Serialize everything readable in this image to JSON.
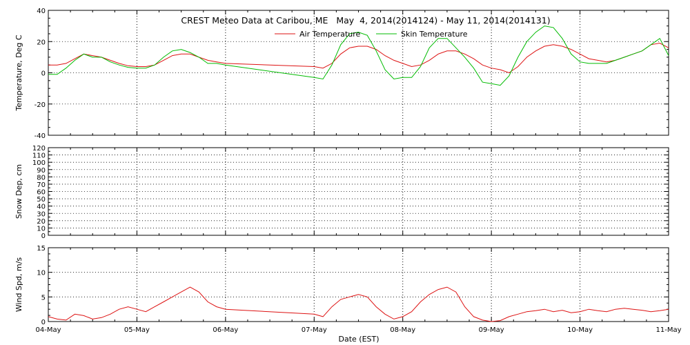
{
  "chart_data": {
    "type": "line",
    "title": "CREST Meteo Data at Caribou, ME   May  4, 2014(2014124) - May 11, 2014(2014131)",
    "xlabel": "Date (EST)",
    "x_tick_labels": [
      "04-May",
      "05-May",
      "06-May",
      "07-May",
      "08-May",
      "09-May",
      "10-May",
      "11-May"
    ],
    "xlim": [
      "2014-05-04",
      "2014-05-11"
    ],
    "grid": true,
    "colors": {
      "air": "#dd1111",
      "skin": "#00bb00",
      "wind": "#dd1111"
    },
    "panels": [
      {
        "id": "temperature",
        "ylabel": "Temperature, Deg C",
        "ylim": [
          -40,
          40
        ],
        "yticks": [
          -40,
          -20,
          0,
          20,
          40
        ],
        "legend": "top-center",
        "series": [
          {
            "name": "Air Temperature",
            "x": [
              0,
              0.1,
              0.2,
              0.3,
              0.4,
              0.5,
              0.6,
              0.7,
              0.8,
              0.9,
              1.0,
              1.1,
              1.2,
              1.3,
              1.4,
              1.5,
              1.6,
              1.7,
              1.8,
              1.9,
              2.0,
              3.0,
              3.1,
              3.2,
              3.3,
              3.4,
              3.5,
              3.6,
              3.7,
              3.8,
              3.9,
              4.0,
              4.1,
              4.2,
              4.3,
              4.4,
              4.5,
              4.6,
              4.7,
              4.8,
              4.9,
              5.0,
              5.1,
              5.2,
              5.3,
              5.4,
              5.5,
              5.6,
              5.7,
              5.8,
              5.9,
              6.0,
              6.1,
              6.2,
              6.3,
              6.4,
              6.5,
              6.6,
              6.7,
              6.8,
              6.9,
              7.0
            ],
            "y": [
              5,
              5,
              6,
              9,
              12,
              11,
              10,
              8,
              6,
              4.5,
              4,
              4,
              5,
              8,
              11,
              12,
              12,
              10,
              8,
              7,
              6,
              4,
              3,
              6,
              12,
              16,
              17,
              17,
              15,
              11,
              8,
              6,
              4,
              5,
              8,
              12,
              14,
              14,
              12,
              9,
              5,
              3,
              2,
              0,
              4,
              10,
              14,
              17,
              18,
              17,
              15,
              12,
              9,
              8,
              7,
              8,
              10,
              12,
              14,
              18,
              19,
              16
            ]
          },
          {
            "name": "Skin Temperature",
            "x": [
              0,
              0.1,
              0.2,
              0.3,
              0.4,
              0.5,
              0.6,
              0.7,
              0.8,
              0.9,
              1.0,
              1.1,
              1.2,
              1.3,
              1.4,
              1.5,
              1.6,
              1.7,
              1.8,
              1.9,
              2.0,
              3.0,
              3.1,
              3.2,
              3.3,
              3.4,
              3.5,
              3.6,
              3.7,
              3.8,
              3.9,
              4.0,
              4.1,
              4.2,
              4.3,
              4.4,
              4.5,
              4.6,
              4.7,
              4.8,
              4.9,
              5.0,
              5.1,
              5.2,
              5.3,
              5.4,
              5.5,
              5.6,
              5.7,
              5.8,
              5.9,
              6.0,
              6.1,
              6.2,
              6.3,
              6.4,
              6.5,
              6.6,
              6.7,
              6.8,
              6.9,
              7.0
            ],
            "y": [
              -1,
              -1,
              3,
              8,
              12,
              10,
              10,
              7,
              5,
              3.5,
              3,
              3,
              5,
              10,
              14,
              15,
              13,
              10,
              6,
              6,
              5,
              -3,
              -4,
              5,
              18,
              25,
              26,
              24,
              14,
              2,
              -4,
              -3,
              -3,
              4,
              16,
              22,
              22,
              16,
              10,
              3,
              -6,
              -7,
              -8,
              -2,
              10,
              20,
              26,
              30,
              29,
              22,
              12,
              7,
              6,
              6,
              6,
              8,
              10,
              12,
              14,
              18,
              22,
              11
            ]
          }
        ]
      },
      {
        "id": "snow",
        "ylabel": "Snow Dep, cm",
        "ylim": [
          0,
          120
        ],
        "yticks": [
          0,
          10,
          20,
          30,
          40,
          50,
          60,
          70,
          80,
          90,
          100,
          110,
          120
        ],
        "series": []
      },
      {
        "id": "wind",
        "ylabel": "Wind Spd, m/s",
        "ylim": [
          0,
          15
        ],
        "yticks": [
          0,
          5,
          10,
          15
        ],
        "series": [
          {
            "name": "Wind Spd",
            "x": [
              0,
              0.1,
              0.2,
              0.3,
              0.4,
              0.5,
              0.6,
              0.7,
              0.8,
              0.9,
              1.0,
              1.1,
              1.2,
              1.3,
              1.4,
              1.5,
              1.6,
              1.7,
              1.8,
              1.9,
              2.0,
              3.0,
              3.1,
              3.2,
              3.3,
              3.4,
              3.5,
              3.6,
              3.7,
              3.8,
              3.9,
              4.0,
              4.1,
              4.2,
              4.3,
              4.4,
              4.5,
              4.6,
              4.7,
              4.8,
              4.9,
              5.0,
              5.1,
              5.2,
              5.3,
              5.4,
              5.5,
              5.6,
              5.7,
              5.8,
              5.9,
              6.0,
              6.1,
              6.2,
              6.3,
              6.4,
              6.5,
              6.6,
              6.7,
              6.8,
              6.9,
              7.0
            ],
            "y": [
              1,
              0.5,
              0.3,
              1.5,
              1.2,
              0.5,
              0.8,
              1.5,
              2.5,
              3,
              2.5,
              2,
              3,
              4,
              5,
              6,
              7,
              6,
              4,
              3,
              2.5,
              1.5,
              1,
              3,
              4.5,
              5,
              5.5,
              5,
              3,
              1.5,
              0.5,
              1,
              2,
              4,
              5.5,
              6.5,
              7,
              6,
              3,
              1,
              0.3,
              0,
              0.2,
              1,
              1.5,
              2,
              2.2,
              2.5,
              2,
              2.3,
              1.8,
              2,
              2.5,
              2.2,
              2,
              2.5,
              2.7,
              2.5,
              2.3,
              2,
              2.2,
              2.5
            ]
          }
        ]
      }
    ]
  }
}
